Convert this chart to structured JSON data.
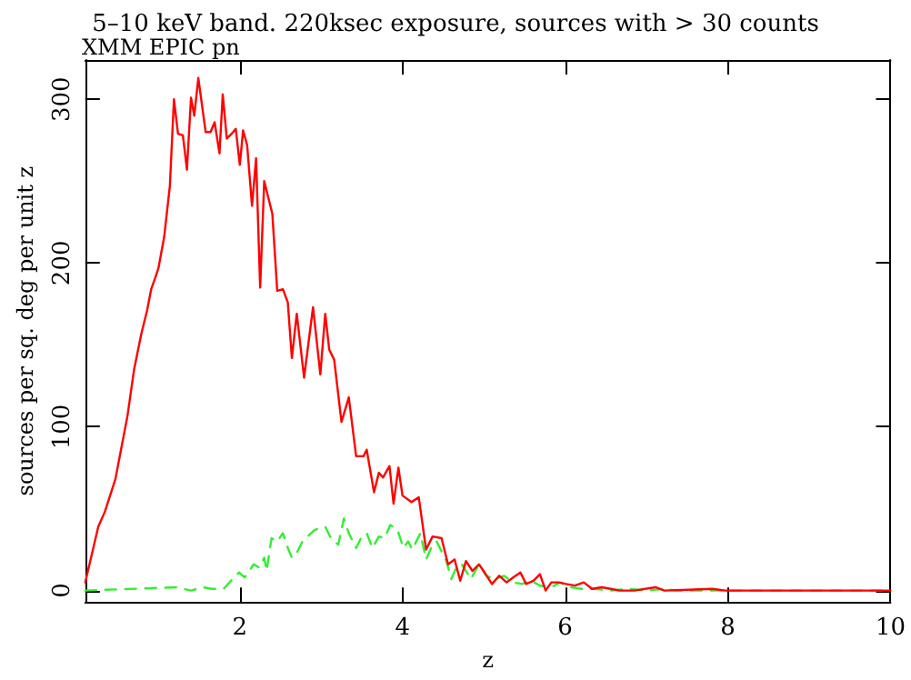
{
  "chart_data": {
    "type": "line",
    "title": "5–10 keV band. 220ksec exposure, sources with > 30 counts",
    "subtitle": "XMM EPIC pn",
    "xlabel": "z",
    "ylabel": "sources per sq. deg per unit z",
    "xlim": [
      0.1,
      10
    ],
    "xticks": [
      2,
      4,
      6,
      8,
      10
    ],
    "ylim": [
      -7,
      324
    ],
    "yticks": [
      0,
      100,
      200,
      300
    ],
    "grid": false,
    "marker": "none",
    "series": [
      {
        "color": "#ff0000",
        "line_style": "solid",
        "x": [
          0.1,
          0.26,
          0.34,
          0.47,
          0.52,
          0.62,
          0.7,
          0.79,
          0.86,
          0.91,
          0.96,
          1.0,
          1.07,
          1.14,
          1.19,
          1.24,
          1.3,
          1.35,
          1.4,
          1.44,
          1.49,
          1.58,
          1.64,
          1.69,
          1.75,
          1.79,
          1.84,
          1.9,
          1.95,
          2.0,
          2.04,
          2.09,
          2.15,
          2.2,
          2.25,
          2.3,
          2.35,
          2.4,
          2.46,
          2.53,
          2.59,
          2.64,
          2.7,
          2.79,
          2.9,
          2.99,
          3.05,
          3.1,
          3.16,
          3.25,
          3.34,
          3.43,
          3.52,
          3.56,
          3.65,
          3.71,
          3.76,
          3.84,
          3.89,
          3.95,
          4.0,
          4.11,
          4.2,
          4.29,
          4.37,
          4.48,
          4.56,
          4.64,
          4.71,
          4.78,
          4.86,
          4.94,
          5.01,
          5.1,
          5.19,
          5.28,
          5.36,
          5.45,
          5.52,
          5.61,
          5.69,
          5.76,
          5.83,
          5.92,
          6.01,
          6.12,
          6.23,
          6.33,
          6.45,
          6.56,
          6.67,
          6.85,
          7.11,
          7.22,
          7.81,
          7.97,
          10
        ],
        "values": [
          5,
          39,
          48,
          68,
          81,
          107,
          135,
          157,
          171,
          184,
          191,
          197,
          216,
          247,
          300,
          279,
          278,
          257,
          301,
          290,
          313,
          280,
          280,
          286,
          267,
          303,
          276,
          279,
          282,
          260,
          281,
          272,
          235,
          264,
          185,
          250,
          240,
          230,
          183,
          184,
          176,
          142,
          169,
          130,
          173,
          132,
          169,
          147,
          141,
          103,
          118,
          82,
          82,
          86,
          60,
          72,
          69,
          76,
          53,
          75,
          58,
          54,
          57,
          25,
          33,
          32,
          16,
          19,
          6,
          18,
          12,
          16,
          11,
          4,
          9,
          5,
          8,
          11,
          4,
          6,
          10,
          0,
          5,
          5,
          4,
          3,
          5,
          1,
          2,
          1,
          0,
          0,
          2,
          0,
          1,
          0,
          0
        ]
      },
      {
        "color": "#33ee33",
        "line_style": "dashed",
        "x": [
          0.1,
          1.22,
          1.4,
          1.55,
          1.65,
          1.8,
          1.91,
          1.99,
          2.06,
          2.17,
          2.24,
          2.3,
          2.33,
          2.39,
          2.46,
          2.53,
          2.59,
          2.64,
          2.7,
          2.77,
          2.92,
          3.05,
          3.12,
          3.21,
          3.28,
          3.34,
          3.43,
          3.49,
          3.56,
          3.63,
          3.71,
          3.78,
          3.85,
          3.94,
          4.01,
          4.07,
          4.12,
          4.22,
          4.29,
          4.37,
          4.42,
          4.54,
          4.6,
          4.66,
          4.73,
          4.84,
          4.94,
          5.03,
          5.14,
          5.25,
          5.36,
          5.47,
          5.58,
          5.69,
          5.83,
          5.94,
          6.06,
          6.2,
          6.35,
          6.56,
          6.78,
          7.0,
          7.22,
          7.36,
          10
        ],
        "values": [
          0,
          2,
          0,
          2,
          1,
          1,
          7,
          11,
          8,
          16,
          14,
          20,
          12,
          32,
          30,
          35,
          26,
          20,
          23,
          30,
          37,
          39,
          32,
          28,
          44,
          35,
          26,
          32,
          35,
          26,
          33,
          32,
          40,
          37,
          26,
          30,
          25,
          35,
          19,
          28,
          30,
          18,
          7,
          14,
          16,
          7,
          16,
          9,
          7,
          9,
          5,
          4,
          6,
          3,
          2,
          5,
          2,
          1,
          1,
          0,
          1,
          0,
          1,
          0,
          0
        ]
      }
    ]
  }
}
